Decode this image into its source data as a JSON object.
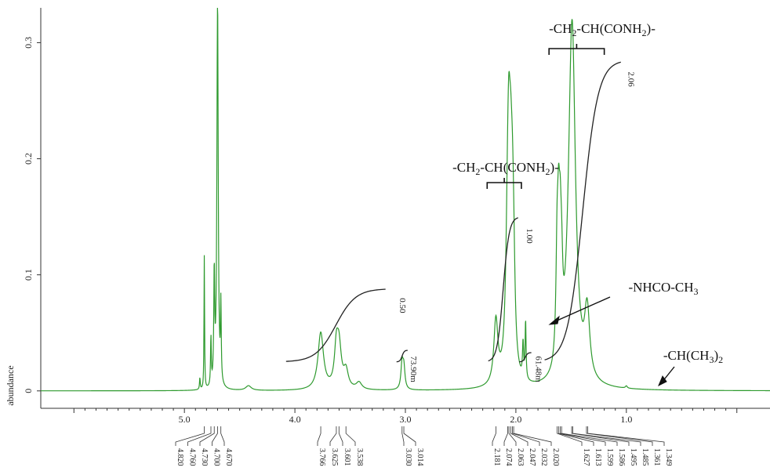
{
  "chart_data": {
    "type": "line",
    "title": "",
    "xlabel": "",
    "ylabel": "abundance",
    "xlim": [
      6.3,
      -0.3
    ],
    "ylim": [
      -0.015,
      0.33
    ],
    "x_ticks": [
      "5.0",
      "4.0",
      "3.0",
      "2.0",
      "1.0"
    ],
    "x_tick_values": [
      5.0,
      4.0,
      3.0,
      2.0,
      1.0
    ],
    "y_ticks": [
      "0",
      "0.1",
      "0.2",
      "0.3"
    ],
    "y_tick_values": [
      0,
      0.1,
      0.2,
      0.3
    ],
    "spectrum_color": "#2e9a2e",
    "integral_color": "#222222",
    "peaks": [
      {
        "ppm": 4.82,
        "height": 0.115,
        "width": 0.003
      },
      {
        "ppm": 4.76,
        "height": 0.042,
        "width": 0.004
      },
      {
        "ppm": 4.73,
        "height": 0.096,
        "width": 0.005
      },
      {
        "ppm": 4.7,
        "height": 0.34,
        "width": 0.007
      },
      {
        "ppm": 4.67,
        "height": 0.066,
        "width": 0.004
      },
      {
        "ppm": 4.86,
        "height": 0.01,
        "width": 0.004
      },
      {
        "ppm": 4.42,
        "height": 0.004,
        "width": 0.03
      },
      {
        "ppm": 3.766,
        "height": 0.049,
        "width": 0.03
      },
      {
        "ppm": 3.625,
        "height": 0.03,
        "width": 0.02
      },
      {
        "ppm": 3.601,
        "height": 0.035,
        "width": 0.025
      },
      {
        "ppm": 3.538,
        "height": 0.015,
        "width": 0.025
      },
      {
        "ppm": 3.42,
        "height": 0.006,
        "width": 0.03
      },
      {
        "ppm": 3.03,
        "height": 0.022,
        "width": 0.012
      },
      {
        "ppm": 3.014,
        "height": 0.018,
        "width": 0.012
      },
      {
        "ppm": 2.181,
        "height": 0.055,
        "width": 0.022
      },
      {
        "ppm": 2.074,
        "height": 0.115,
        "width": 0.02
      },
      {
        "ppm": 2.063,
        "height": 0.095,
        "width": 0.015
      },
      {
        "ppm": 2.047,
        "height": 0.12,
        "width": 0.018
      },
      {
        "ppm": 2.032,
        "height": 0.075,
        "width": 0.015
      },
      {
        "ppm": 2.02,
        "height": 0.06,
        "width": 0.015
      },
      {
        "ppm": 1.935,
        "height": 0.03,
        "width": 0.006
      },
      {
        "ppm": 1.912,
        "height": 0.05,
        "width": 0.005
      },
      {
        "ppm": 1.627,
        "height": 0.085,
        "width": 0.012
      },
      {
        "ppm": 1.613,
        "height": 0.09,
        "width": 0.012
      },
      {
        "ppm": 1.599,
        "height": 0.075,
        "width": 0.012
      },
      {
        "ppm": 1.586,
        "height": 0.05,
        "width": 0.012
      },
      {
        "ppm": 1.495,
        "height": 0.24,
        "width": 0.04
      },
      {
        "ppm": 1.485,
        "height": 0.08,
        "width": 0.03
      },
      {
        "ppm": 1.361,
        "height": 0.03,
        "width": 0.025
      },
      {
        "ppm": 1.349,
        "height": 0.03,
        "width": 0.025
      },
      {
        "ppm": 1.0,
        "height": 0.002,
        "width": 0.01
      }
    ],
    "peak_labels": [
      "4.820",
      "4.760",
      "4.730",
      "4.700",
      "4.670",
      "3.766",
      "3.625",
      "3.601",
      "3.538",
      "3.030",
      "3.014",
      "2.181",
      "2.074",
      "2.063",
      "2.047",
      "2.032",
      "2.020",
      "1.627",
      "1.613",
      "1.599",
      "1.586",
      "1.495",
      "1.485",
      "1.361",
      "1.349"
    ],
    "integrals": [
      {
        "label": "0.50",
        "from_ppm": 4.08,
        "to_ppm": 3.18,
        "base": 0.025,
        "top": 0.088,
        "label_ppm": 3.05,
        "label_y": 0.08
      },
      {
        "label": "73.90m",
        "from_ppm": 3.08,
        "to_ppm": 2.98,
        "base": 0.025,
        "top": 0.035,
        "label_ppm": 2.95,
        "label_y": 0.03
      },
      {
        "label": "1.00",
        "from_ppm": 2.25,
        "to_ppm": 1.98,
        "base": 0.025,
        "top": 0.15,
        "label_ppm": 1.9,
        "label_y": 0.14
      },
      {
        "label": "61.48m",
        "from_ppm": 1.97,
        "to_ppm": 1.86,
        "base": 0.025,
        "top": 0.033,
        "label_ppm": 1.82,
        "label_y": 0.03
      },
      {
        "label": "2.06",
        "from_ppm": 1.74,
        "to_ppm": 1.05,
        "base": 0.025,
        "top": 0.285,
        "label_ppm": 0.98,
        "label_y": 0.275
      }
    ],
    "annotations": [
      {
        "text_main": "-CH",
        "sub1": "2",
        "mid": "-CH(CONH",
        "sub2": "2",
        "tail": ")-",
        "anchor_ppm": 1.47,
        "anchor_y": 0.308
      },
      {
        "text_main": "-CH",
        "sub1": "2",
        "mid": "-CH(CONH",
        "sub2": "2",
        "tail": ")-",
        "anchor_ppm": 2.07,
        "anchor_y": 0.189
      },
      {
        "text_main": "-NHCO-CH",
        "sub1": "3",
        "mid": "",
        "sub2": "",
        "tail": "",
        "anchor_ppm": 1.18,
        "anchor_y": 0.086
      },
      {
        "text_main": "-CH(CH",
        "sub1": "3",
        "mid": ")",
        "sub2": "2",
        "tail": "",
        "anchor_ppm": 0.8,
        "anchor_y": 0.029
      }
    ]
  }
}
